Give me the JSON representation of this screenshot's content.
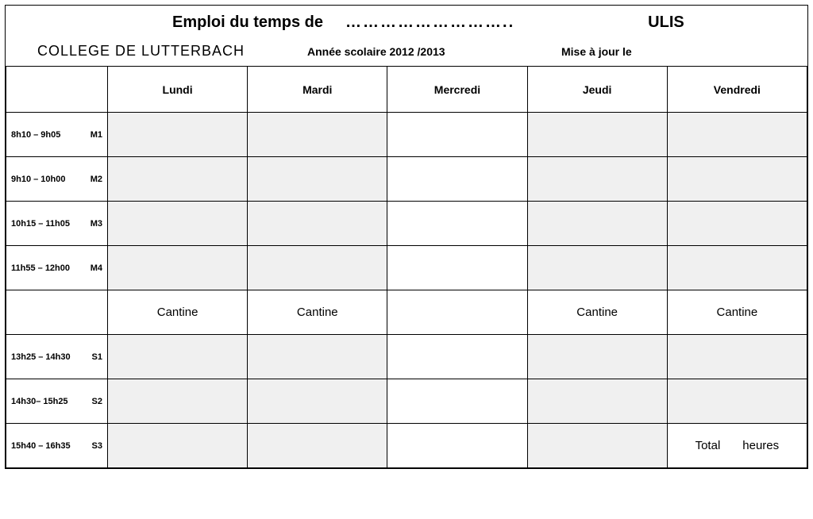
{
  "header": {
    "title_prefix": "Emploi du temps de",
    "dots": "………………………..",
    "ulis": "ULIS",
    "school": "COLLEGE DE LUTTERBACH",
    "year": "Année scolaire 2012 /2013",
    "updated_label": "Mise à jour le"
  },
  "days": [
    "Lundi",
    "Mardi",
    "Mercredi",
    "Jeudi",
    "Vendredi"
  ],
  "rows": [
    {
      "time": "8h10 – 9h05",
      "code": "M1",
      "fills": [
        "grey",
        "grey",
        "white",
        "grey",
        "grey"
      ]
    },
    {
      "time": "9h10 – 10h00",
      "code": "M2",
      "fills": [
        "grey",
        "grey",
        "white",
        "grey",
        "grey"
      ]
    },
    {
      "time": "10h15 – 11h05",
      "code": "M3",
      "fills": [
        "grey",
        "grey",
        "white",
        "grey",
        "grey"
      ]
    },
    {
      "time": "11h55 – 12h00",
      "code": "M4",
      "fills": [
        "grey",
        "grey",
        "white",
        "grey",
        "grey"
      ]
    }
  ],
  "lunch": {
    "label": "Cantine",
    "cells": [
      "Cantine",
      "Cantine",
      "",
      "Cantine",
      "Cantine"
    ]
  },
  "rows_pm": [
    {
      "time": "13h25 – 14h30",
      "code": "S1",
      "fills": [
        "grey",
        "grey",
        "white",
        "grey",
        "grey"
      ]
    },
    {
      "time": "14h30– 15h25",
      "code": "S2",
      "fills": [
        "grey",
        "grey",
        "white",
        "grey",
        "grey"
      ]
    },
    {
      "time": "15h40 – 16h35",
      "code": "S3",
      "fills": [
        "grey",
        "grey",
        "white",
        "grey",
        "total"
      ]
    }
  ],
  "total": {
    "label": "Total",
    "unit": "heures"
  },
  "colors": {
    "grey": "#f0f0f0",
    "white": "#ffffff",
    "border": "#000000"
  }
}
